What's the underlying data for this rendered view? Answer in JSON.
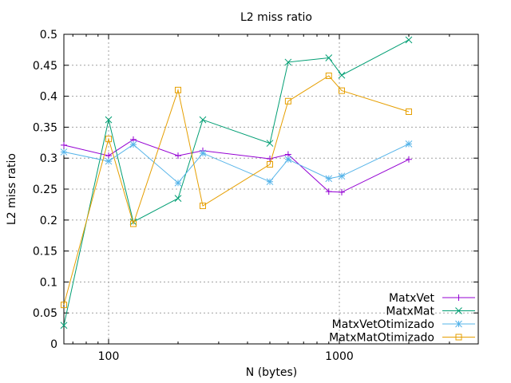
{
  "chart_data": {
    "type": "line",
    "title": "L2 miss ratio",
    "xlabel": "N (bytes)",
    "ylabel": "L2 miss ratio",
    "xscale": "log",
    "xlim": [
      64,
      4000
    ],
    "ylim": [
      0,
      0.5
    ],
    "x_ticks": [
      100,
      1000
    ],
    "x_tick_labels": [
      "100",
      "1000"
    ],
    "y_ticks": [
      0,
      0.05,
      0.1,
      0.15,
      0.2,
      0.25,
      0.3,
      0.35,
      0.4,
      0.45,
      0.5
    ],
    "y_tick_labels": [
      "0",
      "0.05",
      "0.1",
      "0.15",
      "0.2",
      "0.25",
      "0.3",
      "0.35",
      "0.4",
      "0.45",
      "0.5"
    ],
    "grid": true,
    "legend_position": "bottom-right",
    "x": [
      64,
      100,
      128,
      200,
      256,
      500,
      600,
      900,
      1024,
      2000
    ],
    "series": [
      {
        "name": "MatxVet",
        "color": "#9400d3",
        "marker": "plus",
        "values": [
          0.321,
          0.304,
          0.33,
          0.304,
          0.312,
          0.299,
          0.306,
          0.246,
          0.245,
          0.298
        ]
      },
      {
        "name": "MatxMat",
        "color": "#009e73",
        "marker": "cross",
        "values": [
          0.03,
          0.362,
          0.197,
          0.235,
          0.362,
          0.324,
          0.455,
          0.462,
          0.434,
          0.491
        ]
      },
      {
        "name": "MatxVetOtimizado",
        "color": "#56b4e9",
        "marker": "star",
        "values": [
          0.31,
          0.295,
          0.322,
          0.26,
          0.308,
          0.262,
          0.298,
          0.267,
          0.271,
          0.323
        ]
      },
      {
        "name": "MatxMatOtimizado",
        "color": "#e69f00",
        "marker": "square",
        "values": [
          0.063,
          0.331,
          0.194,
          0.41,
          0.223,
          0.29,
          0.392,
          0.433,
          0.409,
          0.375
        ]
      }
    ]
  }
}
